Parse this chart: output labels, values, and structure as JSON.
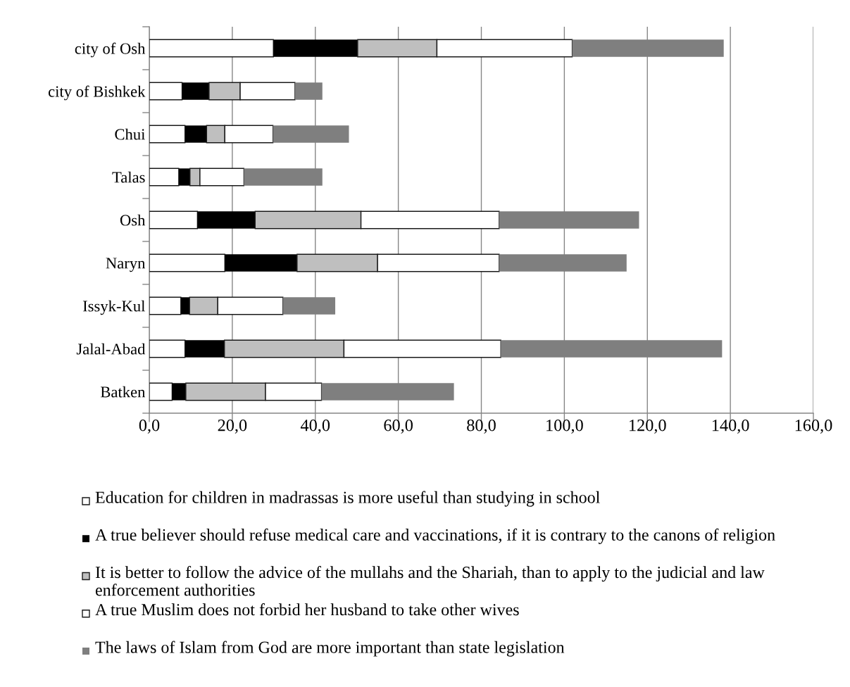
{
  "chart_data": {
    "type": "bar",
    "orientation": "horizontal",
    "stacked": true,
    "categories": [
      "city of Osh",
      "city of Bishkek",
      "Chui",
      "Talas",
      "Osh",
      "Naryn",
      "Issyk-Kul",
      "Jalal-Abad",
      "Batken"
    ],
    "series": [
      {
        "name": "Education for children in madrassas is more useful than studying in school",
        "color": "#ffffff",
        "values": [
          29.9,
          7.9,
          8.6,
          7.1,
          11.6,
          18.2,
          7.6,
          8.6,
          5.5
        ]
      },
      {
        "name": "A true believer should refuse medical care and vaccinations, if it is contrary to the canons of religion",
        "color": "#000000",
        "values": [
          20.3,
          6.5,
          5.2,
          2.7,
          13.9,
          17.4,
          2.1,
          9.5,
          3.3
        ]
      },
      {
        "name": "It is better to follow the advice of the mullahs and the Shariah, than to apply to the judicial and law enforcement authorities",
        "color": "#bfbfbf",
        "values": [
          19.1,
          7.5,
          4.4,
          2.4,
          25.5,
          19.4,
          6.8,
          28.8,
          19.2
        ]
      },
      {
        "name": "A true Muslim does not forbid her husband to take other wives",
        "color": "#ffffff",
        "values": [
          32.6,
          13.2,
          11.6,
          10.6,
          33.3,
          29.3,
          15.7,
          37.8,
          13.5
        ]
      },
      {
        "name": "The laws of Islam from God are more important than state legislation",
        "color": "#7f7f7f",
        "values": [
          36.5,
          6.6,
          18.3,
          18.9,
          33.7,
          30.7,
          12.6,
          53.3,
          31.9
        ]
      }
    ],
    "xlim": [
      0,
      160
    ],
    "xticks": [
      {
        "value": 0,
        "label": "0,0"
      },
      {
        "value": 20,
        "label": "20,0"
      },
      {
        "value": 40,
        "label": "40,0"
      },
      {
        "value": 60,
        "label": "60,0"
      },
      {
        "value": 80,
        "label": "80,0"
      },
      {
        "value": 100,
        "label": "100,0"
      },
      {
        "value": 120,
        "label": "120,0"
      },
      {
        "value": 140,
        "label": "140,0"
      },
      {
        "value": 160,
        "label": "160,0"
      }
    ],
    "grid": "x",
    "legend": "bottom"
  }
}
